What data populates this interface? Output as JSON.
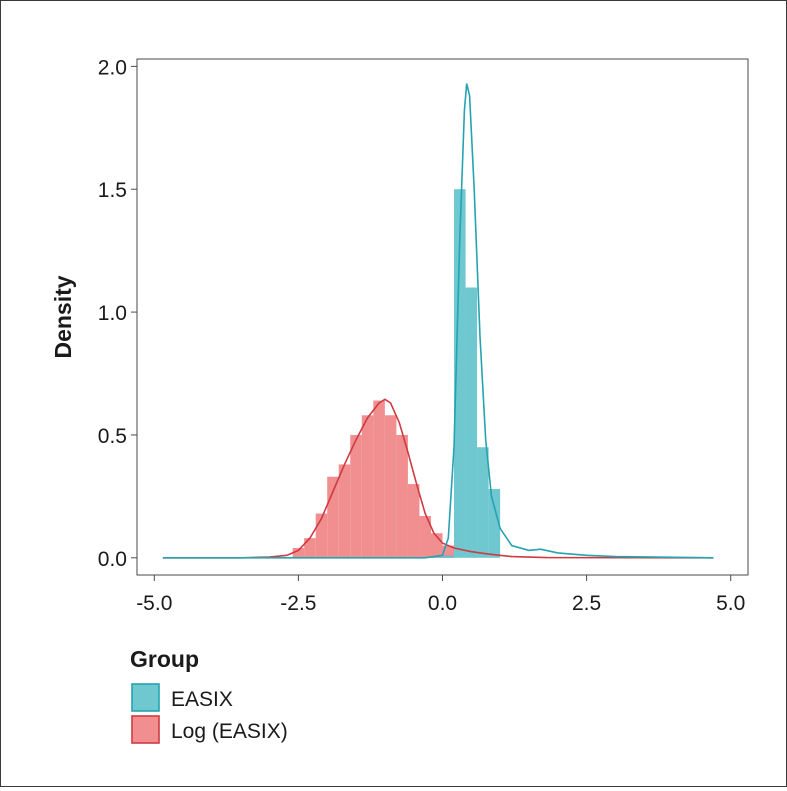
{
  "chart_data": {
    "type": "histogram",
    "xlim": [
      -5.3,
      5.3
    ],
    "ylim": [
      -0.07,
      2.03
    ],
    "x_ticks": [
      "-5.0",
      "-2.5",
      "0.0",
      "2.5",
      "5.0"
    ],
    "x_tick_values": [
      -5.0,
      -2.5,
      0.0,
      2.5,
      5.0
    ],
    "y_ticks": [
      "0.0",
      "0.5",
      "1.0",
      "1.5",
      "2.0"
    ],
    "y_tick_values": [
      0.0,
      0.5,
      1.0,
      1.5,
      2.0
    ],
    "ylabel": "Density",
    "xlabel": "",
    "grid": false,
    "legend": {
      "title": "Group",
      "position": "bottom-left"
    },
    "series": [
      {
        "name": "EASIX",
        "fill": "#5bbfca",
        "line": "#25a3b1",
        "bins": [
          {
            "x0": -0.2,
            "x1": 0.0,
            "density": 0.005
          },
          {
            "x0": 0.0,
            "x1": 0.2,
            "density": 0.01
          },
          {
            "x0": 0.2,
            "x1": 0.4,
            "density": 1.5
          },
          {
            "x0": 0.4,
            "x1": 0.6,
            "density": 1.1
          },
          {
            "x0": 0.6,
            "x1": 0.8,
            "density": 0.45
          },
          {
            "x0": 0.8,
            "x1": 1.0,
            "density": 0.28
          }
        ],
        "density_curve": [
          [
            -4.85,
            0.0
          ],
          [
            -0.3,
            0.0
          ],
          [
            0.0,
            0.01
          ],
          [
            0.1,
            0.08
          ],
          [
            0.2,
            0.45
          ],
          [
            0.3,
            1.3
          ],
          [
            0.38,
            1.82
          ],
          [
            0.42,
            1.93
          ],
          [
            0.47,
            1.88
          ],
          [
            0.55,
            1.5
          ],
          [
            0.65,
            0.9
          ],
          [
            0.75,
            0.48
          ],
          [
            0.85,
            0.25
          ],
          [
            1.0,
            0.12
          ],
          [
            1.2,
            0.05
          ],
          [
            1.5,
            0.03
          ],
          [
            1.7,
            0.035
          ],
          [
            2.0,
            0.02
          ],
          [
            2.5,
            0.01
          ],
          [
            3.0,
            0.005
          ],
          [
            4.7,
            0.0
          ]
        ]
      },
      {
        "name": "Log (EASIX)",
        "fill": "#ee7e81",
        "line": "#cf3b41",
        "bins": [
          {
            "x0": -2.6,
            "x1": -2.4,
            "density": 0.04
          },
          {
            "x0": -2.4,
            "x1": -2.2,
            "density": 0.08
          },
          {
            "x0": -2.2,
            "x1": -2.0,
            "density": 0.18
          },
          {
            "x0": -2.0,
            "x1": -1.8,
            "density": 0.33
          },
          {
            "x0": -1.8,
            "x1": -1.6,
            "density": 0.38
          },
          {
            "x0": -1.6,
            "x1": -1.4,
            "density": 0.5
          },
          {
            "x0": -1.4,
            "x1": -1.2,
            "density": 0.58
          },
          {
            "x0": -1.2,
            "x1": -1.0,
            "density": 0.64
          },
          {
            "x0": -1.0,
            "x1": -0.8,
            "density": 0.58
          },
          {
            "x0": -0.8,
            "x1": -0.6,
            "density": 0.5
          },
          {
            "x0": -0.6,
            "x1": -0.4,
            "density": 0.3
          },
          {
            "x0": -0.4,
            "x1": -0.2,
            "density": 0.17
          },
          {
            "x0": -0.2,
            "x1": 0.0,
            "density": 0.1
          },
          {
            "x0": 0.0,
            "x1": 0.2,
            "density": 0.05
          }
        ],
        "density_curve": [
          [
            -4.85,
            0.0
          ],
          [
            -3.5,
            0.0
          ],
          [
            -3.0,
            0.003
          ],
          [
            -2.7,
            0.01
          ],
          [
            -2.5,
            0.03
          ],
          [
            -2.3,
            0.08
          ],
          [
            -2.1,
            0.16
          ],
          [
            -1.9,
            0.27
          ],
          [
            -1.7,
            0.38
          ],
          [
            -1.5,
            0.48
          ],
          [
            -1.3,
            0.57
          ],
          [
            -1.1,
            0.63
          ],
          [
            -1.0,
            0.645
          ],
          [
            -0.9,
            0.63
          ],
          [
            -0.75,
            0.55
          ],
          [
            -0.6,
            0.43
          ],
          [
            -0.45,
            0.3
          ],
          [
            -0.3,
            0.18
          ],
          [
            -0.15,
            0.1
          ],
          [
            0.0,
            0.06
          ],
          [
            0.2,
            0.04
          ],
          [
            0.5,
            0.025
          ],
          [
            0.8,
            0.015
          ],
          [
            1.2,
            0.005
          ],
          [
            1.8,
            0.001
          ],
          [
            4.7,
            0.0
          ]
        ]
      }
    ]
  }
}
